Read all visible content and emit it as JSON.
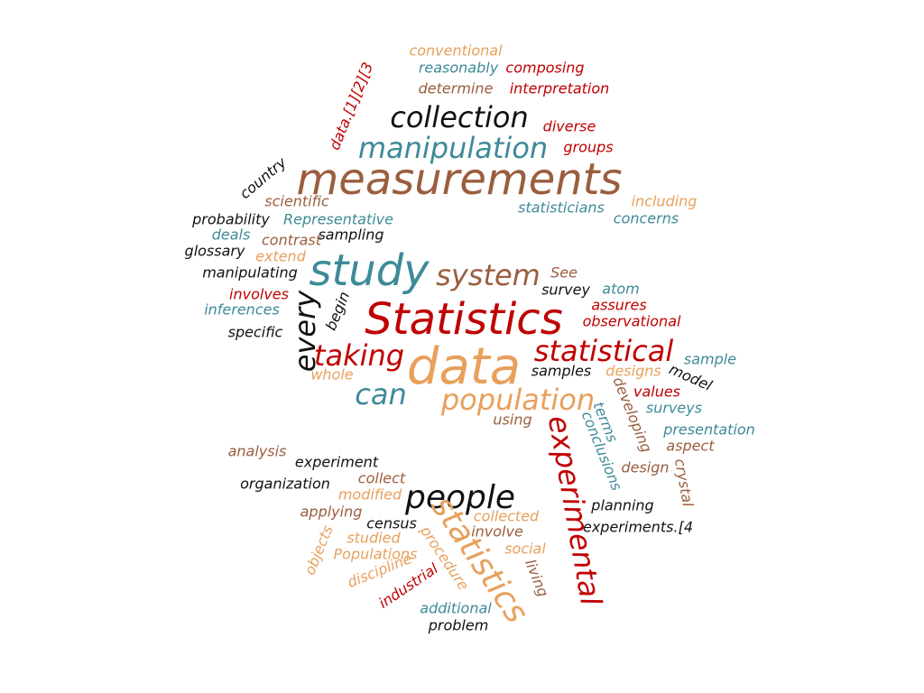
{
  "palette": {
    "red": "#c00000",
    "brown": "#9a5e3e",
    "teal": "#3e8a99",
    "orange": "#e8a05c",
    "black": "#111111"
  },
  "words": [
    {
      "text": "conventional",
      "color": "orange"
    },
    {
      "text": "reasonably",
      "color": "teal"
    },
    {
      "text": "composing",
      "color": "red"
    },
    {
      "text": "determine",
      "color": "brown"
    },
    {
      "text": "interpretation",
      "color": "red"
    },
    {
      "text": "collection",
      "color": "black"
    },
    {
      "text": "diverse",
      "color": "red"
    },
    {
      "text": "data.[1][2][3",
      "color": "red"
    },
    {
      "text": "manipulation",
      "color": "teal"
    },
    {
      "text": "groups",
      "color": "red"
    },
    {
      "text": "measurements",
      "color": "brown"
    },
    {
      "text": "country",
      "color": "black"
    },
    {
      "text": "scientific",
      "color": "brown"
    },
    {
      "text": "statisticians",
      "color": "teal"
    },
    {
      "text": "including",
      "color": "orange"
    },
    {
      "text": "concerns",
      "color": "teal"
    },
    {
      "text": "probability",
      "color": "black"
    },
    {
      "text": "Representative",
      "color": "teal"
    },
    {
      "text": "deals",
      "color": "teal"
    },
    {
      "text": "sampling",
      "color": "black"
    },
    {
      "text": "contrast",
      "color": "brown"
    },
    {
      "text": "glossary",
      "color": "black"
    },
    {
      "text": "extend",
      "color": "orange"
    },
    {
      "text": "study",
      "color": "teal"
    },
    {
      "text": "system",
      "color": "brown"
    },
    {
      "text": "See",
      "color": "brown"
    },
    {
      "text": "manipulating",
      "color": "black"
    },
    {
      "text": "atom",
      "color": "teal"
    },
    {
      "text": "survey",
      "color": "black"
    },
    {
      "text": "involves",
      "color": "red"
    },
    {
      "text": "Statistics",
      "color": "red"
    },
    {
      "text": "assures",
      "color": "red"
    },
    {
      "text": "inferences",
      "color": "teal"
    },
    {
      "text": "every",
      "color": "black"
    },
    {
      "text": "begin",
      "color": "black"
    },
    {
      "text": "observational",
      "color": "red"
    },
    {
      "text": "specific",
      "color": "black"
    },
    {
      "text": "taking",
      "color": "red"
    },
    {
      "text": "data",
      "color": "orange"
    },
    {
      "text": "statistical",
      "color": "red"
    },
    {
      "text": "sample",
      "color": "teal"
    },
    {
      "text": "whole",
      "color": "orange"
    },
    {
      "text": "samples",
      "color": "black"
    },
    {
      "text": "designs",
      "color": "orange"
    },
    {
      "text": "model",
      "color": "black"
    },
    {
      "text": "can",
      "color": "teal"
    },
    {
      "text": "population",
      "color": "orange"
    },
    {
      "text": "values",
      "color": "red"
    },
    {
      "text": "developing",
      "color": "brown"
    },
    {
      "text": "surveys",
      "color": "teal"
    },
    {
      "text": "using",
      "color": "brown"
    },
    {
      "text": "experimental",
      "color": "red"
    },
    {
      "text": "terms",
      "color": "teal"
    },
    {
      "text": "presentation",
      "color": "teal"
    },
    {
      "text": "conclusions",
      "color": "teal"
    },
    {
      "text": "aspect",
      "color": "brown"
    },
    {
      "text": "analysis",
      "color": "brown"
    },
    {
      "text": "experiment",
      "color": "black"
    },
    {
      "text": "design",
      "color": "brown"
    },
    {
      "text": "crystal",
      "color": "brown"
    },
    {
      "text": "organization",
      "color": "black"
    },
    {
      "text": "collect",
      "color": "brown"
    },
    {
      "text": "people",
      "color": "black"
    },
    {
      "text": "modified",
      "color": "orange"
    },
    {
      "text": "planning",
      "color": "black"
    },
    {
      "text": "applying",
      "color": "brown"
    },
    {
      "text": "statistics",
      "color": "orange"
    },
    {
      "text": "collected",
      "color": "orange"
    },
    {
      "text": "census",
      "color": "black"
    },
    {
      "text": "involve",
      "color": "brown"
    },
    {
      "text": "experiments.[4",
      "color": "black"
    },
    {
      "text": "studied",
      "color": "orange"
    },
    {
      "text": "objects",
      "color": "orange"
    },
    {
      "text": "procedure",
      "color": "orange"
    },
    {
      "text": "social",
      "color": "orange"
    },
    {
      "text": "Populations",
      "color": "orange"
    },
    {
      "text": "living",
      "color": "brown"
    },
    {
      "text": "discipline",
      "color": "orange"
    },
    {
      "text": "industrial",
      "color": "red"
    },
    {
      "text": "additional",
      "color": "teal"
    },
    {
      "text": "problem",
      "color": "black"
    }
  ]
}
